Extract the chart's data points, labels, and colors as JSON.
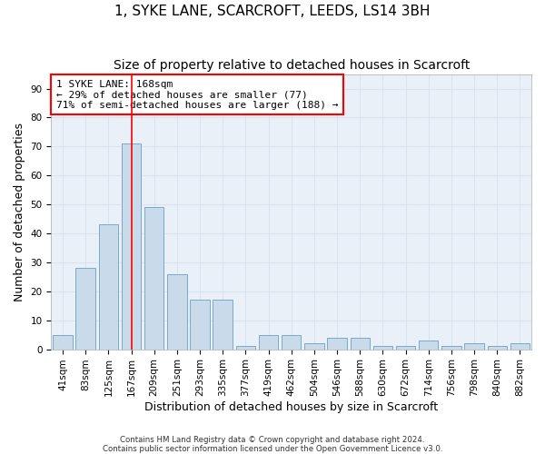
{
  "title_line1": "1, SYKE LANE, SCARCROFT, LEEDS, LS14 3BH",
  "title_line2": "Size of property relative to detached houses in Scarcroft",
  "xlabel": "Distribution of detached houses by size in Scarcroft",
  "ylabel": "Number of detached properties",
  "footnote1": "Contains HM Land Registry data © Crown copyright and database right 2024.",
  "footnote2": "Contains public sector information licensed under the Open Government Licence v3.0.",
  "bar_labels": [
    "41sqm",
    "83sqm",
    "125sqm",
    "167sqm",
    "209sqm",
    "251sqm",
    "293sqm",
    "335sqm",
    "377sqm",
    "419sqm",
    "462sqm",
    "504sqm",
    "546sqm",
    "588sqm",
    "630sqm",
    "672sqm",
    "714sqm",
    "756sqm",
    "798sqm",
    "840sqm",
    "882sqm"
  ],
  "bar_values": [
    5,
    28,
    43,
    71,
    49,
    26,
    17,
    17,
    1,
    5,
    5,
    2,
    4,
    4,
    1,
    1,
    3,
    1,
    2,
    1,
    2
  ],
  "bar_color": "#c9daea",
  "bar_edge_color": "#7aaac8",
  "grid_color": "#d8e4f0",
  "background_color": "#eaf0f8",
  "annotation_line1": "1 SYKE LANE: 168sqm",
  "annotation_line2": "← 29% of detached houses are smaller (77)",
  "annotation_line3": "71% of semi-detached houses are larger (188) →",
  "annotation_box_color": "white",
  "annotation_box_edge": "red",
  "vline_bar_index": 3,
  "vline_color": "red",
  "ylim": [
    0,
    95
  ],
  "yticks": [
    0,
    10,
    20,
    30,
    40,
    50,
    60,
    70,
    80,
    90
  ],
  "title_fontsize": 11,
  "subtitle_fontsize": 10,
  "axis_label_fontsize": 9,
  "tick_fontsize": 7.5,
  "annot_fontsize": 8
}
